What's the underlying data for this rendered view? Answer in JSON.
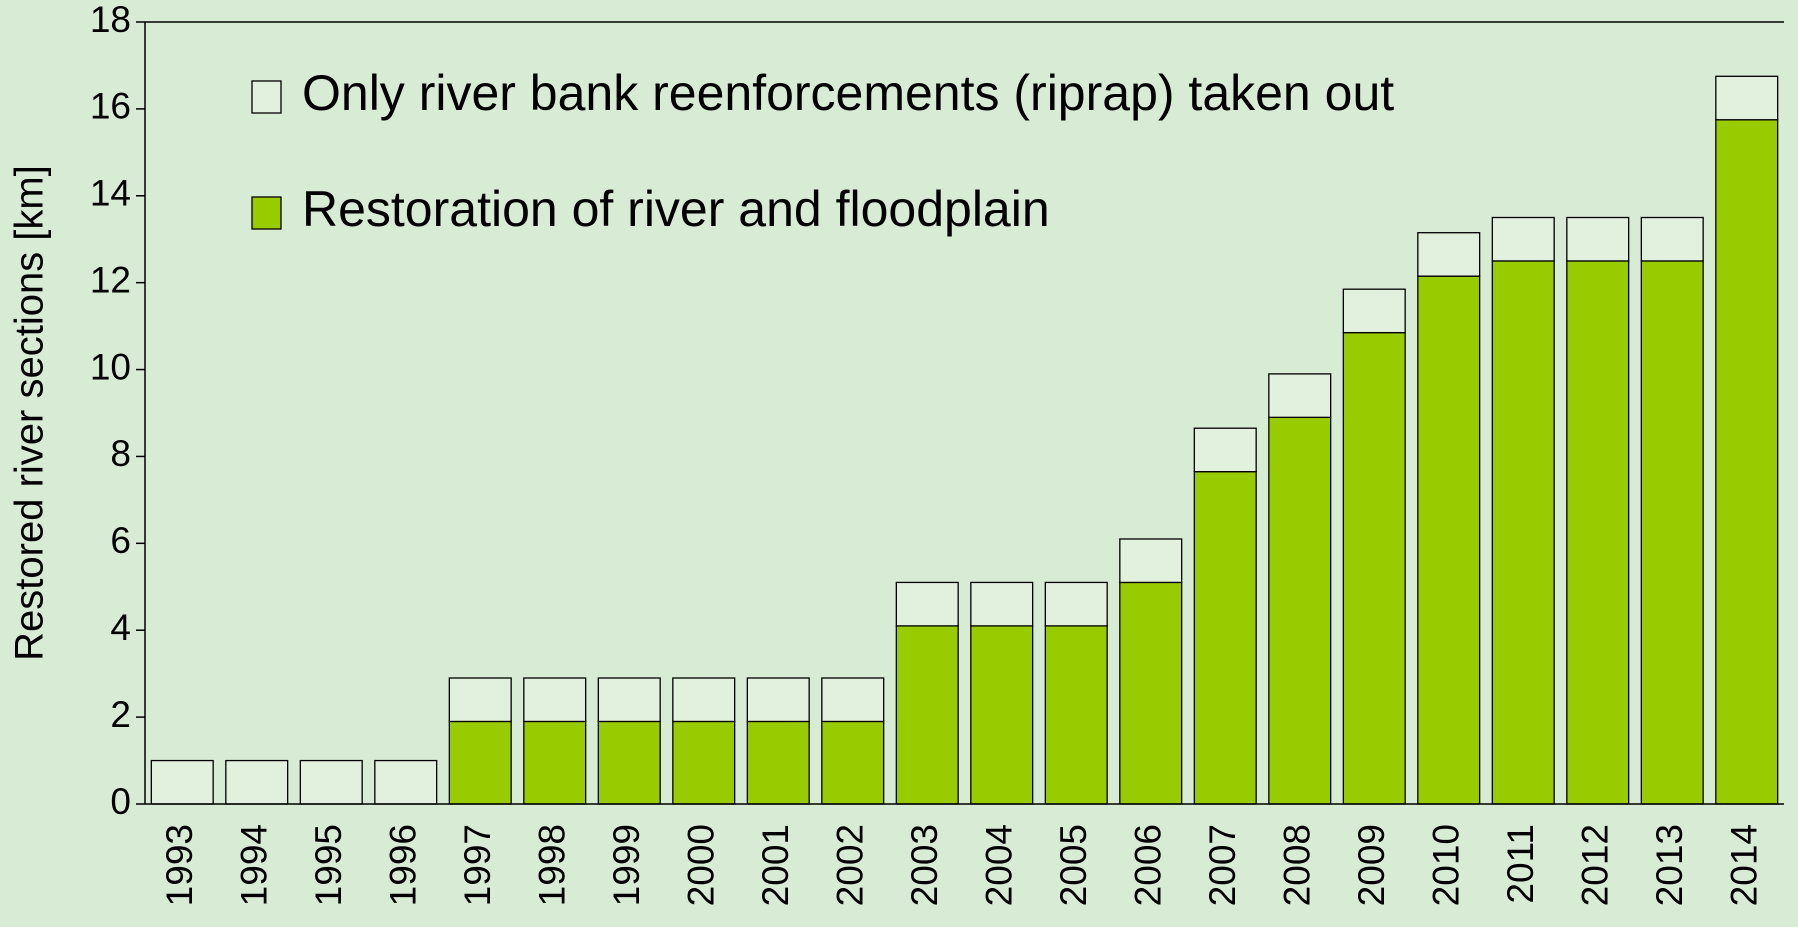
{
  "chart_data": {
    "type": "stacked_bar",
    "ylabel": "Restored river sections [km]",
    "categories": [
      "1993",
      "1994",
      "1995",
      "1996",
      "1997",
      "1998",
      "1999",
      "2000",
      "2001",
      "2002",
      "2003",
      "2004",
      "2005",
      "2006",
      "2007",
      "2008",
      "2009",
      "2010",
      "2011",
      "2012",
      "2013",
      "2014"
    ],
    "series": [
      {
        "name": "Restoration of river and floodplain",
        "color": "#99cc00",
        "values": [
          0,
          0,
          0,
          0,
          1.9,
          1.9,
          1.9,
          1.9,
          1.9,
          1.9,
          4.1,
          4.1,
          4.1,
          5.1,
          7.65,
          8.9,
          10.85,
          12.15,
          12.5,
          12.5,
          12.5,
          15.75
        ]
      },
      {
        "name": "Only river bank reenforcements (riprap) taken out",
        "color": "#e2f0de",
        "values": [
          1,
          1,
          1,
          1,
          1,
          1,
          1,
          1,
          1,
          1,
          1,
          1,
          1,
          1,
          1,
          1,
          1,
          1,
          1,
          1,
          1,
          1
        ]
      }
    ],
    "ylim": [
      0,
      18
    ],
    "yticks": [
      0,
      2,
      4,
      6,
      8,
      10,
      12,
      14,
      16,
      18
    ],
    "legend": "upper left"
  }
}
